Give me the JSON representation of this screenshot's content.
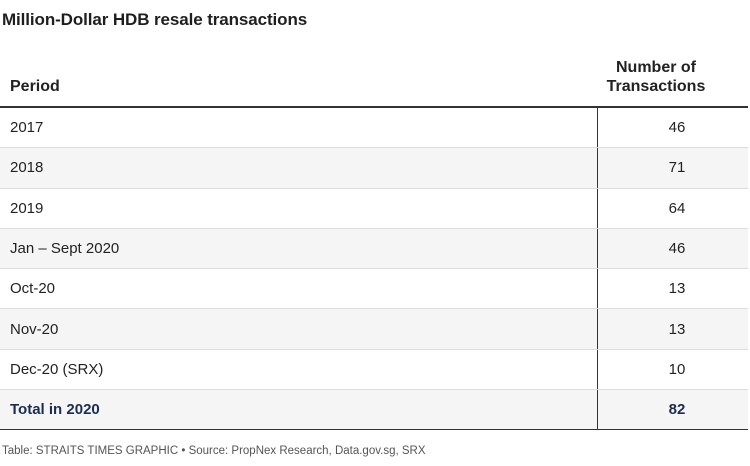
{
  "title": "Million-Dollar HDB resale transactions",
  "footer": "Table: STRAITS TIMES GRAPHIC • Source: PropNex Research, Data.gov.sg, SRX",
  "chart_data": {
    "type": "table",
    "title": "Million-Dollar HDB resale transactions",
    "columns": [
      "Period",
      "Number of Transactions"
    ],
    "rows": [
      {
        "period": "2017",
        "count": "46"
      },
      {
        "period": "2018",
        "count": "71"
      },
      {
        "period": "2019",
        "count": "64"
      },
      {
        "period": "Jan – Sept 2020",
        "count": "46"
      },
      {
        "period": "Oct-20",
        "count": "13"
      },
      {
        "period": "Nov-20",
        "count": "13"
      },
      {
        "period": "Dec-20 (SRX)",
        "count": "10"
      }
    ],
    "total": {
      "period": "Total in 2020",
      "count": "82"
    }
  },
  "colors": {
    "total_text": "#1b2e52",
    "alt_row": "#f5f5f5"
  }
}
